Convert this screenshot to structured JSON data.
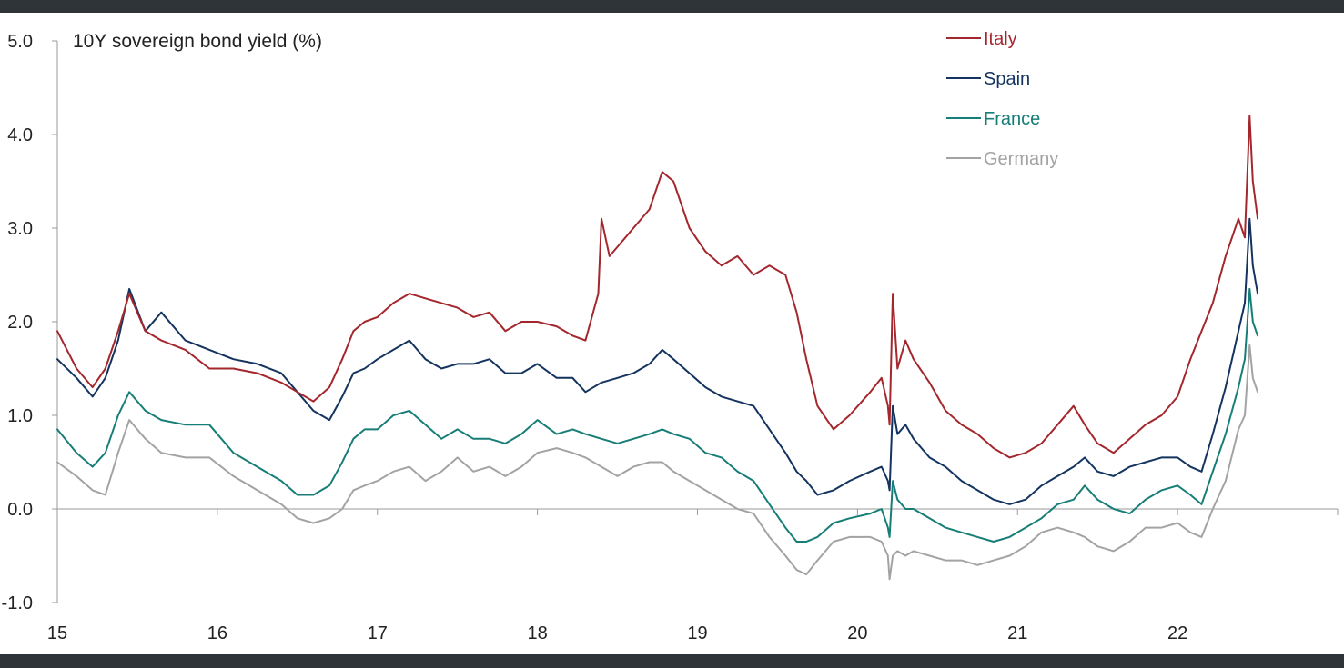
{
  "chart_data": {
    "type": "line",
    "title": "10Y sovereign bond yield (%)",
    "xlabel": "",
    "ylabel": "",
    "xlim": [
      2015.0,
      2023.0
    ],
    "ylim": [
      -1.0,
      5.0
    ],
    "x_ticks": [
      "15",
      "16",
      "17",
      "18",
      "19",
      "20",
      "21",
      "22"
    ],
    "y_ticks": [
      "5.0",
      "4.0",
      "3.0",
      "2.0",
      "1.0",
      "0.0",
      "-1.0"
    ],
    "grid": false,
    "legend_position": "top-right",
    "colors": {
      "Italy": "#a4272d",
      "Spain": "#14345f",
      "France": "#177e77",
      "Germany": "#a3a3a3",
      "axis": "#9a9a9a",
      "text": "#222222",
      "frame": "#2f3438"
    },
    "series": [
      {
        "name": "Italy",
        "x": [
          2015.0,
          2015.12,
          2015.22,
          2015.3,
          2015.38,
          2015.45,
          2015.55,
          2015.65,
          2015.8,
          2015.95,
          2016.1,
          2016.25,
          2016.4,
          2016.5,
          2016.6,
          2016.7,
          2016.78,
          2016.85,
          2016.92,
          2017.0,
          2017.1,
          2017.2,
          2017.3,
          2017.4,
          2017.5,
          2017.6,
          2017.7,
          2017.8,
          2017.9,
          2018.0,
          2018.12,
          2018.22,
          2018.3,
          2018.38,
          2018.4,
          2018.45,
          2018.5,
          2018.6,
          2018.7,
          2018.78,
          2018.85,
          2018.95,
          2019.05,
          2019.15,
          2019.25,
          2019.35,
          2019.45,
          2019.55,
          2019.62,
          2019.68,
          2019.75,
          2019.85,
          2019.95,
          2020.08,
          2020.15,
          2020.19,
          2020.2,
          2020.22,
          2020.25,
          2020.3,
          2020.35,
          2020.45,
          2020.55,
          2020.65,
          2020.75,
          2020.85,
          2020.95,
          2021.05,
          2021.15,
          2021.25,
          2021.35,
          2021.42,
          2021.5,
          2021.6,
          2021.7,
          2021.8,
          2021.9,
          2022.0,
          2022.08,
          2022.15,
          2022.22,
          2022.3,
          2022.38,
          2022.42,
          2022.45,
          2022.47,
          2022.5
        ],
        "values": [
          1.9,
          1.5,
          1.3,
          1.5,
          1.9,
          2.3,
          1.9,
          1.8,
          1.7,
          1.5,
          1.5,
          1.45,
          1.35,
          1.25,
          1.15,
          1.3,
          1.6,
          1.9,
          2.0,
          2.05,
          2.2,
          2.3,
          2.25,
          2.2,
          2.15,
          2.05,
          2.1,
          1.9,
          2.0,
          2.0,
          1.95,
          1.85,
          1.8,
          2.3,
          3.1,
          2.7,
          2.8,
          3.0,
          3.2,
          3.6,
          3.5,
          3.0,
          2.75,
          2.6,
          2.7,
          2.5,
          2.6,
          2.5,
          2.1,
          1.6,
          1.1,
          0.85,
          1.0,
          1.25,
          1.4,
          1.1,
          0.9,
          2.3,
          1.5,
          1.8,
          1.6,
          1.35,
          1.05,
          0.9,
          0.8,
          0.65,
          0.55,
          0.6,
          0.7,
          0.9,
          1.1,
          0.9,
          0.7,
          0.6,
          0.75,
          0.9,
          1.0,
          1.2,
          1.6,
          1.9,
          2.2,
          2.7,
          3.1,
          2.9,
          4.2,
          3.5,
          3.1
        ]
      },
      {
        "name": "Spain",
        "x": [
          2015.0,
          2015.12,
          2015.22,
          2015.3,
          2015.38,
          2015.45,
          2015.55,
          2015.65,
          2015.8,
          2015.95,
          2016.1,
          2016.25,
          2016.4,
          2016.5,
          2016.6,
          2016.7,
          2016.78,
          2016.85,
          2016.92,
          2017.0,
          2017.1,
          2017.2,
          2017.3,
          2017.4,
          2017.5,
          2017.6,
          2017.7,
          2017.8,
          2017.9,
          2018.0,
          2018.12,
          2018.22,
          2018.3,
          2018.4,
          2018.5,
          2018.6,
          2018.7,
          2018.78,
          2018.85,
          2018.95,
          2019.05,
          2019.15,
          2019.25,
          2019.35,
          2019.45,
          2019.55,
          2019.62,
          2019.68,
          2019.75,
          2019.85,
          2019.95,
          2020.08,
          2020.15,
          2020.19,
          2020.2,
          2020.22,
          2020.25,
          2020.3,
          2020.35,
          2020.45,
          2020.55,
          2020.65,
          2020.75,
          2020.85,
          2020.95,
          2021.05,
          2021.15,
          2021.25,
          2021.35,
          2021.42,
          2021.5,
          2021.6,
          2021.7,
          2021.8,
          2021.9,
          2022.0,
          2022.08,
          2022.15,
          2022.22,
          2022.3,
          2022.38,
          2022.42,
          2022.45,
          2022.47,
          2022.5
        ],
        "values": [
          1.6,
          1.4,
          1.2,
          1.4,
          1.8,
          2.35,
          1.9,
          2.1,
          1.8,
          1.7,
          1.6,
          1.55,
          1.45,
          1.25,
          1.05,
          0.95,
          1.2,
          1.45,
          1.5,
          1.6,
          1.7,
          1.8,
          1.6,
          1.5,
          1.55,
          1.55,
          1.6,
          1.45,
          1.45,
          1.55,
          1.4,
          1.4,
          1.25,
          1.35,
          1.4,
          1.45,
          1.55,
          1.7,
          1.6,
          1.45,
          1.3,
          1.2,
          1.15,
          1.1,
          0.85,
          0.6,
          0.4,
          0.3,
          0.15,
          0.2,
          0.3,
          0.4,
          0.45,
          0.3,
          0.2,
          1.1,
          0.8,
          0.9,
          0.75,
          0.55,
          0.45,
          0.3,
          0.2,
          0.1,
          0.05,
          0.1,
          0.25,
          0.35,
          0.45,
          0.55,
          0.4,
          0.35,
          0.45,
          0.5,
          0.55,
          0.55,
          0.45,
          0.4,
          0.8,
          1.3,
          1.9,
          2.2,
          3.1,
          2.6,
          2.3
        ]
      },
      {
        "name": "France",
        "x": [
          2015.0,
          2015.12,
          2015.22,
          2015.3,
          2015.38,
          2015.45,
          2015.55,
          2015.65,
          2015.8,
          2015.95,
          2016.1,
          2016.25,
          2016.4,
          2016.5,
          2016.6,
          2016.7,
          2016.78,
          2016.85,
          2016.92,
          2017.0,
          2017.1,
          2017.2,
          2017.3,
          2017.4,
          2017.5,
          2017.6,
          2017.7,
          2017.8,
          2017.9,
          2018.0,
          2018.12,
          2018.22,
          2018.3,
          2018.4,
          2018.5,
          2018.6,
          2018.7,
          2018.78,
          2018.85,
          2018.95,
          2019.05,
          2019.15,
          2019.25,
          2019.35,
          2019.45,
          2019.55,
          2019.62,
          2019.68,
          2019.75,
          2019.85,
          2019.95,
          2020.08,
          2020.15,
          2020.19,
          2020.2,
          2020.22,
          2020.25,
          2020.3,
          2020.35,
          2020.45,
          2020.55,
          2020.65,
          2020.75,
          2020.85,
          2020.95,
          2021.05,
          2021.15,
          2021.25,
          2021.35,
          2021.42,
          2021.5,
          2021.6,
          2021.7,
          2021.8,
          2021.9,
          2022.0,
          2022.08,
          2022.15,
          2022.22,
          2022.3,
          2022.38,
          2022.42,
          2022.45,
          2022.47,
          2022.5
        ],
        "values": [
          0.85,
          0.6,
          0.45,
          0.6,
          1.0,
          1.25,
          1.05,
          0.95,
          0.9,
          0.9,
          0.6,
          0.45,
          0.3,
          0.15,
          0.15,
          0.25,
          0.5,
          0.75,
          0.85,
          0.85,
          1.0,
          1.05,
          0.9,
          0.75,
          0.85,
          0.75,
          0.75,
          0.7,
          0.8,
          0.95,
          0.8,
          0.85,
          0.8,
          0.75,
          0.7,
          0.75,
          0.8,
          0.85,
          0.8,
          0.75,
          0.6,
          0.55,
          0.4,
          0.3,
          0.05,
          -0.2,
          -0.35,
          -0.35,
          -0.3,
          -0.15,
          -0.1,
          -0.05,
          0.0,
          -0.2,
          -0.3,
          0.3,
          0.1,
          0.0,
          0.0,
          -0.1,
          -0.2,
          -0.25,
          -0.3,
          -0.35,
          -0.3,
          -0.2,
          -0.1,
          0.05,
          0.1,
          0.25,
          0.1,
          0.0,
          -0.05,
          0.1,
          0.2,
          0.25,
          0.15,
          0.05,
          0.4,
          0.8,
          1.3,
          1.6,
          2.35,
          2.0,
          1.85
        ]
      },
      {
        "name": "Germany",
        "x": [
          2015.0,
          2015.12,
          2015.22,
          2015.3,
          2015.38,
          2015.45,
          2015.55,
          2015.65,
          2015.8,
          2015.95,
          2016.1,
          2016.25,
          2016.4,
          2016.5,
          2016.6,
          2016.7,
          2016.78,
          2016.85,
          2016.92,
          2017.0,
          2017.1,
          2017.2,
          2017.3,
          2017.4,
          2017.5,
          2017.6,
          2017.7,
          2017.8,
          2017.9,
          2018.0,
          2018.12,
          2018.22,
          2018.3,
          2018.4,
          2018.5,
          2018.6,
          2018.7,
          2018.78,
          2018.85,
          2018.95,
          2019.05,
          2019.15,
          2019.25,
          2019.35,
          2019.45,
          2019.55,
          2019.62,
          2019.68,
          2019.75,
          2019.85,
          2019.95,
          2020.08,
          2020.15,
          2020.19,
          2020.2,
          2020.22,
          2020.25,
          2020.3,
          2020.35,
          2020.45,
          2020.55,
          2020.65,
          2020.75,
          2020.85,
          2020.95,
          2021.05,
          2021.15,
          2021.25,
          2021.35,
          2021.42,
          2021.5,
          2021.6,
          2021.7,
          2021.8,
          2021.9,
          2022.0,
          2022.08,
          2022.15,
          2022.22,
          2022.3,
          2022.38,
          2022.42,
          2022.45,
          2022.47,
          2022.5
        ],
        "values": [
          0.5,
          0.35,
          0.2,
          0.15,
          0.6,
          0.95,
          0.75,
          0.6,
          0.55,
          0.55,
          0.35,
          0.2,
          0.05,
          -0.1,
          -0.15,
          -0.1,
          0.0,
          0.2,
          0.25,
          0.3,
          0.4,
          0.45,
          0.3,
          0.4,
          0.55,
          0.4,
          0.45,
          0.35,
          0.45,
          0.6,
          0.65,
          0.6,
          0.55,
          0.45,
          0.35,
          0.45,
          0.5,
          0.5,
          0.4,
          0.3,
          0.2,
          0.1,
          0.0,
          -0.05,
          -0.3,
          -0.5,
          -0.65,
          -0.7,
          -0.55,
          -0.35,
          -0.3,
          -0.3,
          -0.35,
          -0.5,
          -0.75,
          -0.5,
          -0.45,
          -0.5,
          -0.45,
          -0.5,
          -0.55,
          -0.55,
          -0.6,
          -0.55,
          -0.5,
          -0.4,
          -0.25,
          -0.2,
          -0.25,
          -0.3,
          -0.4,
          -0.45,
          -0.35,
          -0.2,
          -0.2,
          -0.15,
          -0.25,
          -0.3,
          0.0,
          0.3,
          0.85,
          1.0,
          1.75,
          1.4,
          1.25
        ]
      }
    ]
  }
}
